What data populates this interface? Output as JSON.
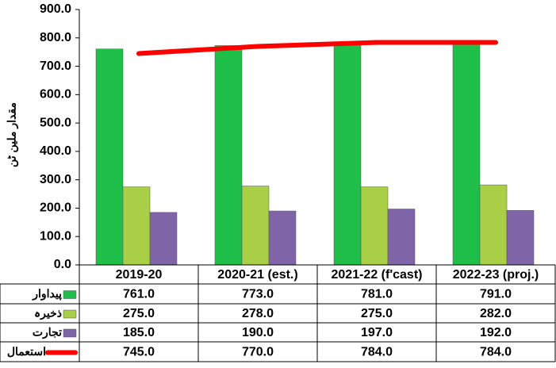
{
  "chart_data": {
    "type": "bar",
    "y_label": "مقدار ملین ٹن",
    "categories": [
      "2019-20",
      "2020-21 (est.)",
      "2021-22 (f'cast)",
      "2022-23 (proj.)"
    ],
    "series": [
      {
        "name": "پیداوار",
        "color": "#1fbf4a",
        "type": "bar",
        "values": [
          761,
          773,
          781,
          791
        ],
        "value_labels": [
          "761.0",
          "773.0",
          "781.0",
          "791.0"
        ]
      },
      {
        "name": "ذخیرہ",
        "color": "#a8cf45",
        "type": "bar",
        "values": [
          275,
          278,
          275,
          282
        ],
        "value_labels": [
          "275.0",
          "278.0",
          "275.0",
          "282.0"
        ]
      },
      {
        "name": "تجارت",
        "color": "#8064a8",
        "type": "bar",
        "values": [
          185,
          190,
          197,
          192
        ],
        "value_labels": [
          "185.0",
          "190.0",
          "197.0",
          "192.0"
        ]
      },
      {
        "name": "استعمال",
        "color": "#ff0000",
        "type": "line",
        "values": [
          745,
          770,
          784,
          784
        ],
        "value_labels": [
          "745.0",
          "770.0",
          "784.0",
          "784.0"
        ]
      }
    ],
    "ylim": [
      0,
      900
    ],
    "yticks": [
      {
        "value": 0,
        "label": "0.0"
      },
      {
        "value": 100,
        "label": "100.0"
      },
      {
        "value": 200,
        "label": "200.0"
      },
      {
        "value": 300,
        "label": "300.0"
      },
      {
        "value": 400,
        "label": "400.0"
      },
      {
        "value": 500,
        "label": "500.0"
      },
      {
        "value": 600,
        "label": "600.0"
      },
      {
        "value": 700,
        "label": "700.0"
      },
      {
        "value": 800,
        "label": "800.0"
      },
      {
        "value": 900,
        "label": "900.0"
      }
    ],
    "grid": false
  }
}
